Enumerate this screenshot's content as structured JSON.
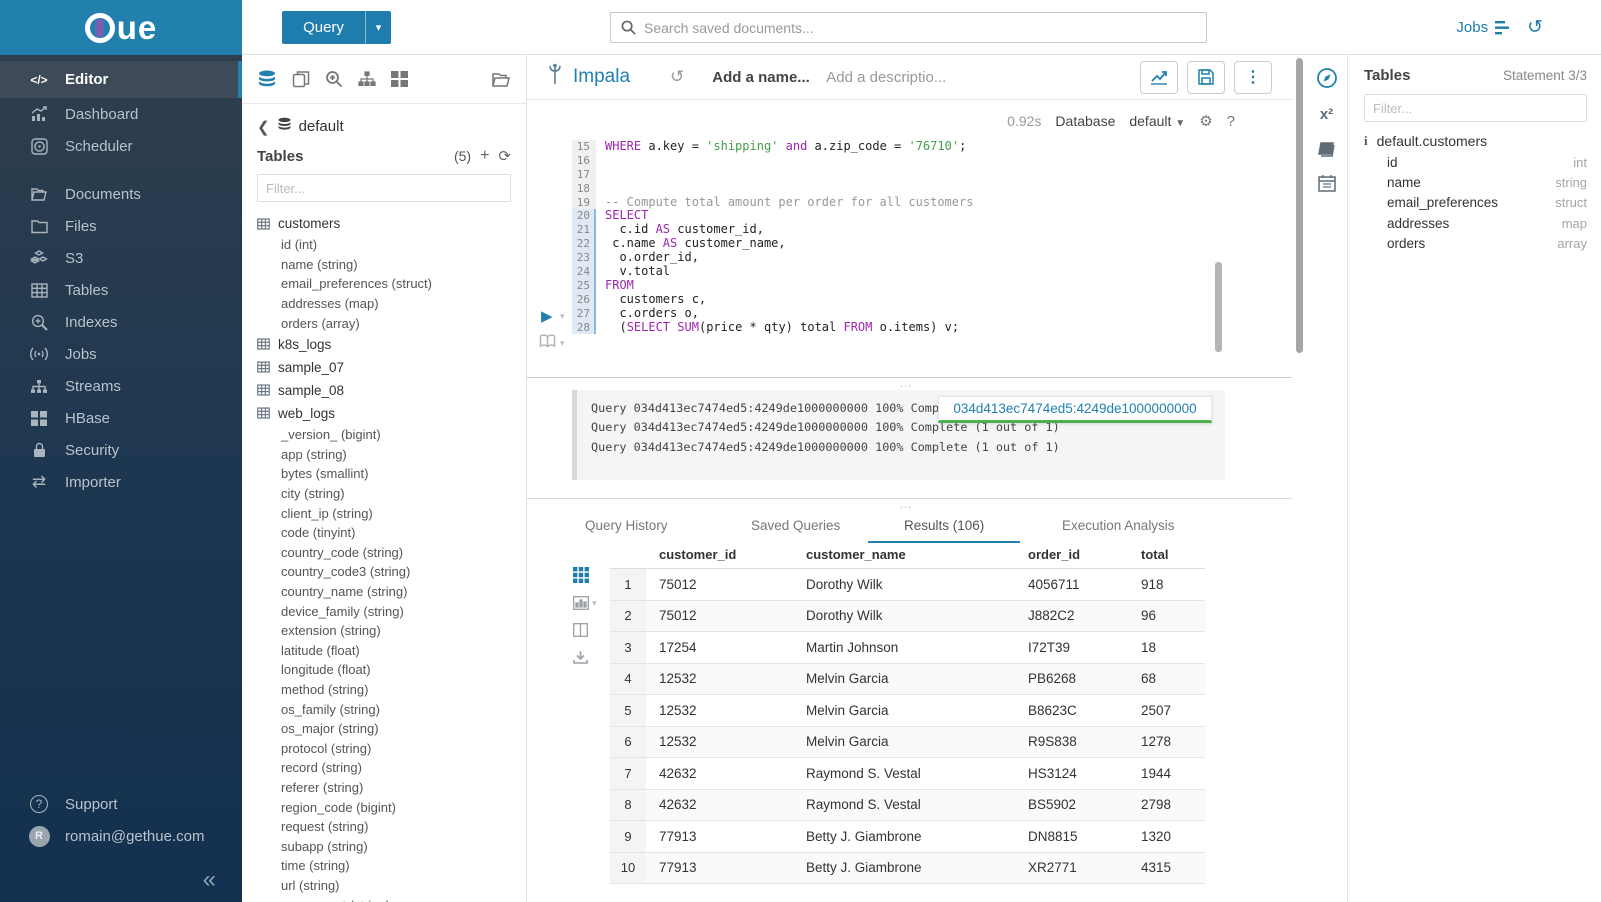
{
  "brand": {
    "logo_text": "ue"
  },
  "topbar": {
    "query_button": "Query",
    "search_placeholder": "Search saved documents...",
    "jobs_label": "Jobs"
  },
  "sidebar": {
    "items": [
      {
        "label": "Editor"
      },
      {
        "label": "Dashboard"
      },
      {
        "label": "Scheduler"
      },
      {
        "label": "Documents"
      },
      {
        "label": "Files"
      },
      {
        "label": "S3"
      },
      {
        "label": "Tables"
      },
      {
        "label": "Indexes"
      },
      {
        "label": "Jobs"
      },
      {
        "label": "Streams"
      },
      {
        "label": "HBase"
      },
      {
        "label": "Security"
      },
      {
        "label": "Importer"
      }
    ],
    "support_label": "Support",
    "user_email": "romain@gethue.com"
  },
  "left_assist": {
    "breadcrumb_db": "default",
    "tables_label": "Tables",
    "tables_count": "(5)",
    "filter_placeholder": "Filter...",
    "customers_table": "customers",
    "customers_columns": [
      "id (int)",
      "name (string)",
      "email_preferences (struct)",
      "addresses (map)",
      "orders (array)"
    ],
    "other_tables_1": "k8s_logs",
    "other_tables_2": "sample_07",
    "other_tables_3": "sample_08",
    "web_logs_table": "web_logs",
    "web_logs_columns": [
      "_version_ (bigint)",
      "app (string)",
      "bytes (smallint)",
      "city (string)",
      "client_ip (string)",
      "code (tinyint)",
      "country_code (string)",
      "country_code3 (string)",
      "country_name (string)",
      "device_family (string)",
      "extension (string)",
      "latitude (float)",
      "longitude (float)",
      "method (string)",
      "os_family (string)",
      "os_major (string)",
      "protocol (string)",
      "record (string)",
      "referer (string)",
      "region_code (bigint)",
      "request (string)",
      "subapp (string)",
      "time (string)",
      "url (string)",
      "user_agent (string)"
    ]
  },
  "editor": {
    "engine": "Impala",
    "name_placeholder": "Add a name...",
    "desc_placeholder": "Add a descriptio...",
    "exec_time": "0.92s",
    "database_label": "Database",
    "database_value": "default",
    "code": {
      "lines": [
        {
          "no": 15,
          "active": false,
          "tokens": [
            [
              "k",
              "WHERE"
            ],
            [
              "p",
              " a.key "
            ],
            [
              "o",
              "= "
            ],
            [
              "s",
              "'shipping'"
            ],
            [
              "p",
              " "
            ],
            [
              "k",
              "and"
            ],
            [
              "p",
              " a.zip_code "
            ],
            [
              "o",
              "= "
            ],
            [
              "s",
              "'76710'"
            ],
            [
              "p",
              ";"
            ]
          ]
        },
        {
          "no": 16,
          "active": false,
          "tokens": []
        },
        {
          "no": 17,
          "active": false,
          "tokens": []
        },
        {
          "no": 18,
          "active": false,
          "tokens": []
        },
        {
          "no": 19,
          "active": false,
          "tokens": [
            [
              "c",
              "-- Compute total amount per order for all customers"
            ]
          ]
        },
        {
          "no": 20,
          "active": true,
          "tokens": [
            [
              "k",
              "SELECT"
            ]
          ]
        },
        {
          "no": 21,
          "active": true,
          "tokens": [
            [
              "p",
              "  c.id "
            ],
            [
              "k",
              "AS"
            ],
            [
              "p",
              " customer_id,"
            ]
          ]
        },
        {
          "no": 22,
          "active": true,
          "tokens": [
            [
              "p",
              " c.name "
            ],
            [
              "k",
              "AS"
            ],
            [
              "p",
              " customer_name,"
            ]
          ]
        },
        {
          "no": 23,
          "active": true,
          "tokens": [
            [
              "p",
              "  o.order_id,"
            ]
          ]
        },
        {
          "no": 24,
          "active": true,
          "tokens": [
            [
              "p",
              "  v.total"
            ]
          ]
        },
        {
          "no": 25,
          "active": true,
          "tokens": [
            [
              "k",
              "FROM"
            ]
          ]
        },
        {
          "no": 26,
          "active": true,
          "tokens": [
            [
              "p",
              "  customers c,"
            ]
          ]
        },
        {
          "no": 27,
          "active": true,
          "tokens": [
            [
              "p",
              "  c.orders o,"
            ]
          ]
        },
        {
          "no": 28,
          "active": true,
          "tokens": [
            [
              "p",
              "  ("
            ],
            [
              "k",
              "SELECT"
            ],
            [
              "p",
              " "
            ],
            [
              "k",
              "SUM"
            ],
            [
              "p",
              "(price * qty) total "
            ],
            [
              "k",
              "FROM"
            ],
            [
              "p",
              " o.items) v;"
            ]
          ]
        }
      ]
    },
    "logs": [
      "Query 034d413ec7474ed5:4249de1000000000 100% Complete (1 out of 1)",
      "Query 034d413ec7474ed5:4249de1000000000 100% Complete (1 out of 1)",
      "Query 034d413ec7474ed5:4249de1000000000 100% Complete (1 out of 1)"
    ],
    "tooltip_text": "034d413ec7474ed5:4249de1000000000"
  },
  "tabs": [
    {
      "label": "Query History"
    },
    {
      "label": "Saved Queries"
    },
    {
      "label": "Results (106)"
    },
    {
      "label": "Execution Analysis"
    }
  ],
  "results": {
    "columns": [
      "customer_id",
      "customer_name",
      "order_id",
      "total"
    ],
    "rows": [
      {
        "customer_id": "75012",
        "customer_name": "Dorothy Wilk",
        "order_id": "4056711",
        "total": "918"
      },
      {
        "customer_id": "75012",
        "customer_name": "Dorothy Wilk",
        "order_id": "J882C2",
        "total": "96"
      },
      {
        "customer_id": "17254",
        "customer_name": "Martin Johnson",
        "order_id": "I72T39",
        "total": "18"
      },
      {
        "customer_id": "12532",
        "customer_name": "Melvin Garcia",
        "order_id": "PB6268",
        "total": "68"
      },
      {
        "customer_id": "12532",
        "customer_name": "Melvin Garcia",
        "order_id": "B8623C",
        "total": "2507"
      },
      {
        "customer_id": "12532",
        "customer_name": "Melvin Garcia",
        "order_id": "R9S838",
        "total": "1278"
      },
      {
        "customer_id": "42632",
        "customer_name": "Raymond S. Vestal",
        "order_id": "HS3124",
        "total": "1944"
      },
      {
        "customer_id": "42632",
        "customer_name": "Raymond S. Vestal",
        "order_id": "BS5902",
        "total": "2798"
      },
      {
        "customer_id": "77913",
        "customer_name": "Betty J. Giambrone",
        "order_id": "DN8815",
        "total": "1320"
      },
      {
        "customer_id": "77913",
        "customer_name": "Betty J. Giambrone",
        "order_id": "XR2771",
        "total": "4315"
      }
    ]
  },
  "right_assist": {
    "title": "Tables",
    "statement": "Statement 3/3",
    "filter_placeholder": "Filter...",
    "table_name": "default.customers",
    "columns": [
      {
        "name": "id",
        "type": "int"
      },
      {
        "name": "name",
        "type": "string"
      },
      {
        "name": "email_preferences",
        "type": "struct"
      },
      {
        "name": "addresses",
        "type": "map"
      },
      {
        "name": "orders",
        "type": "array"
      }
    ]
  },
  "colors": {
    "primary": "#2180ae",
    "sidebar_top": "#2e3e4e",
    "sidebar_bottom": "#12304f",
    "keyword": "#9c27b0",
    "string": "#43a047",
    "comment": "#999999",
    "tooltip_underline": "#4caf50"
  }
}
